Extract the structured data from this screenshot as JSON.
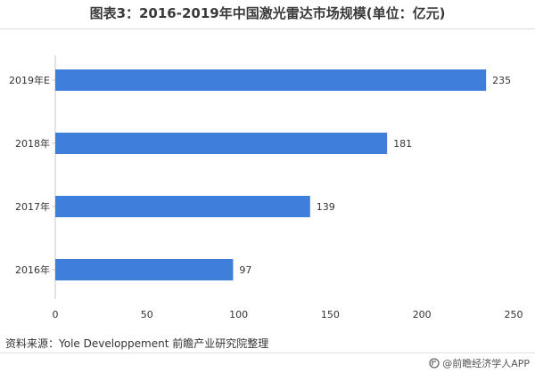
{
  "title": "图表3：2016-2019年中国激光雷达市场规模(单位：亿元)",
  "source": "资料来源：Yole Developpement 前瞻产业研究院整理",
  "brand": "@前瞻经济学人APP",
  "colors": {
    "bar": "#3f7fdb",
    "axis": "#c8c8c8",
    "text": "#333333"
  },
  "chart_data": {
    "type": "bar",
    "orientation": "horizontal",
    "categories": [
      "2019年E",
      "2018年",
      "2017年",
      "2016年"
    ],
    "values": [
      235,
      181,
      139,
      97
    ],
    "xticks": [
      0,
      50,
      100,
      150,
      200,
      250
    ],
    "xlim": [
      0,
      250
    ],
    "title": "图表3：2016-2019年中国激光雷达市场规模(单位：亿元)",
    "xlabel": "",
    "ylabel": "",
    "grid": false,
    "legend": "none"
  }
}
